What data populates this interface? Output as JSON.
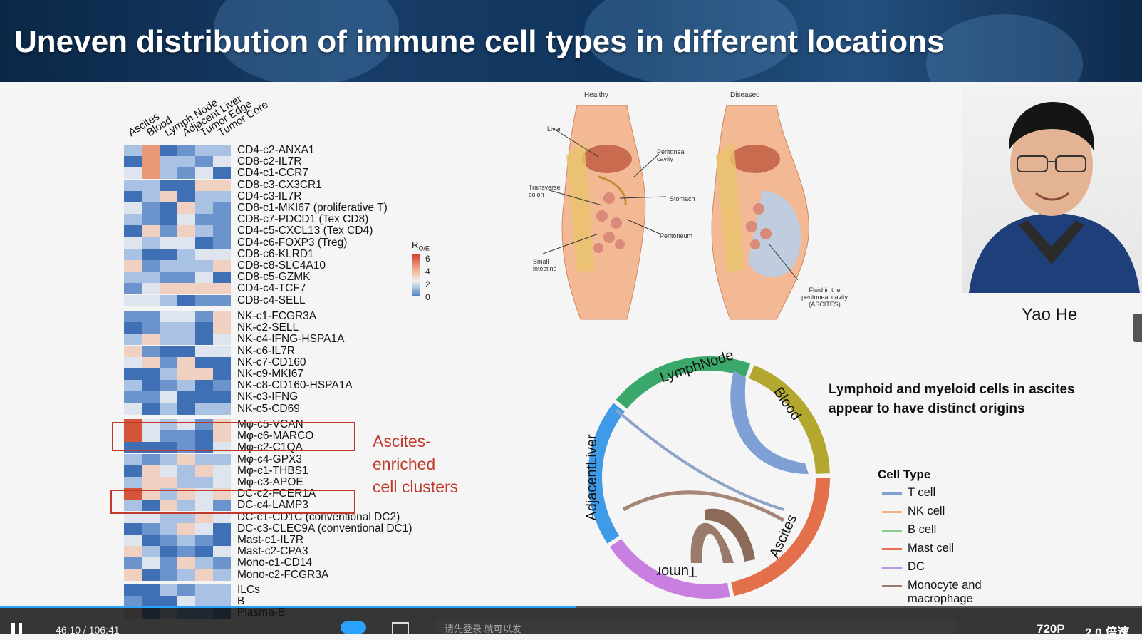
{
  "slide": {
    "title": "Uneven distribution of immune cell types in different locations",
    "heatmap": {
      "columns": [
        "Ascites",
        "Blood",
        "Lymph Node",
        "Adjacent Liver",
        "Tumor Edge",
        "Tumor Core"
      ],
      "legend_title": "R",
      "legend_sub": "O/E",
      "legend_ticks": [
        "6",
        "4",
        "2",
        "0"
      ],
      "groups": [
        [
          "CD4-c2-ANXA1",
          "CD8-c2-IL7R",
          "CD4-c1-CCR7",
          "CD8-c3-CX3CR1",
          "CD4-c3-IL7R",
          "CD8-c1-MKI67 (proliferative T)",
          "CD8-c7-PDCD1 (Tex CD8)",
          "CD4-c5-CXCL13 (Tex CD4)",
          "CD4-c6-FOXP3 (Treg)",
          "CD8-c6-KLRD1",
          "CD8-c8-SLC4A10",
          "CD8-c5-GZMK",
          "CD4-c4-TCF7",
          "CD8-c4-SELL"
        ],
        [
          "NK-c1-FCGR3A",
          "NK-c2-SELL",
          "NK-c4-IFNG-HSPA1A",
          "NK-c6-IL7R",
          "NK-c7-CD160",
          "NK-c9-MKI67",
          "NK-c8-CD160-HSPA1A",
          "NK-c3-IFNG",
          "NK-c5-CD69"
        ],
        [
          "Mφ-c5-VCAN",
          "Mφ-c6-MARCO",
          "Mφ-c2-C1QA",
          "Mφ-c4-GPX3",
          "Mφ-c1-THBS1",
          "Mφ-c3-APOE",
          "DC-c2-FCER1A",
          "DC-c4-LAMP3",
          "DC-c1-CD1C (conventional DC2)",
          "DC-c3-CLEC9A (conventional DC1)",
          "Mast-c1-IL7R",
          "Mast-c2-CPA3",
          "Mono-c1-CD14",
          "Mono-c2-FCGR3A"
        ],
        [
          "ILCs",
          "B",
          "Plasma-B"
        ]
      ],
      "annotation": [
        "Ascites-",
        "enriched",
        "cell clusters"
      ]
    },
    "illustration": {
      "healthy": "Healthy",
      "diseased": "Diseased",
      "labels": [
        "Liver",
        "Peritoneal cavity",
        "Transverse colon",
        "Stomach",
        "Peritoneum",
        "Small intestine",
        "Fluid in the peritoneal cavity (ASCITES)"
      ]
    },
    "speaker": {
      "name": "Yao He"
    },
    "chord": {
      "segments": [
        "LymphNode",
        "Blood",
        "Ascites",
        "Tumor",
        "AdjacentLiver"
      ],
      "note_line1": "Lymphoid and myeloid cells in ascites",
      "note_line2": "appear to have distinct origins",
      "legend_title": "Cell Type",
      "legend": [
        {
          "label": "T cell",
          "color": "#7fa0d4"
        },
        {
          "label": "NK cell",
          "color": "#f0b080"
        },
        {
          "label": "B cell",
          "color": "#8ccf8c"
        },
        {
          "label": "Mast cell",
          "color": "#e8724f"
        },
        {
          "label": "DC",
          "color": "#b99ae0"
        },
        {
          "label": "Monocyte and macrophage",
          "color": "#9a7a6a"
        }
      ]
    }
  },
  "player": {
    "time": "46:10 / 106:41",
    "quality": "720P",
    "speed": "2.0 倍速",
    "comment_placeholder": "请先登录 就可以发"
  }
}
